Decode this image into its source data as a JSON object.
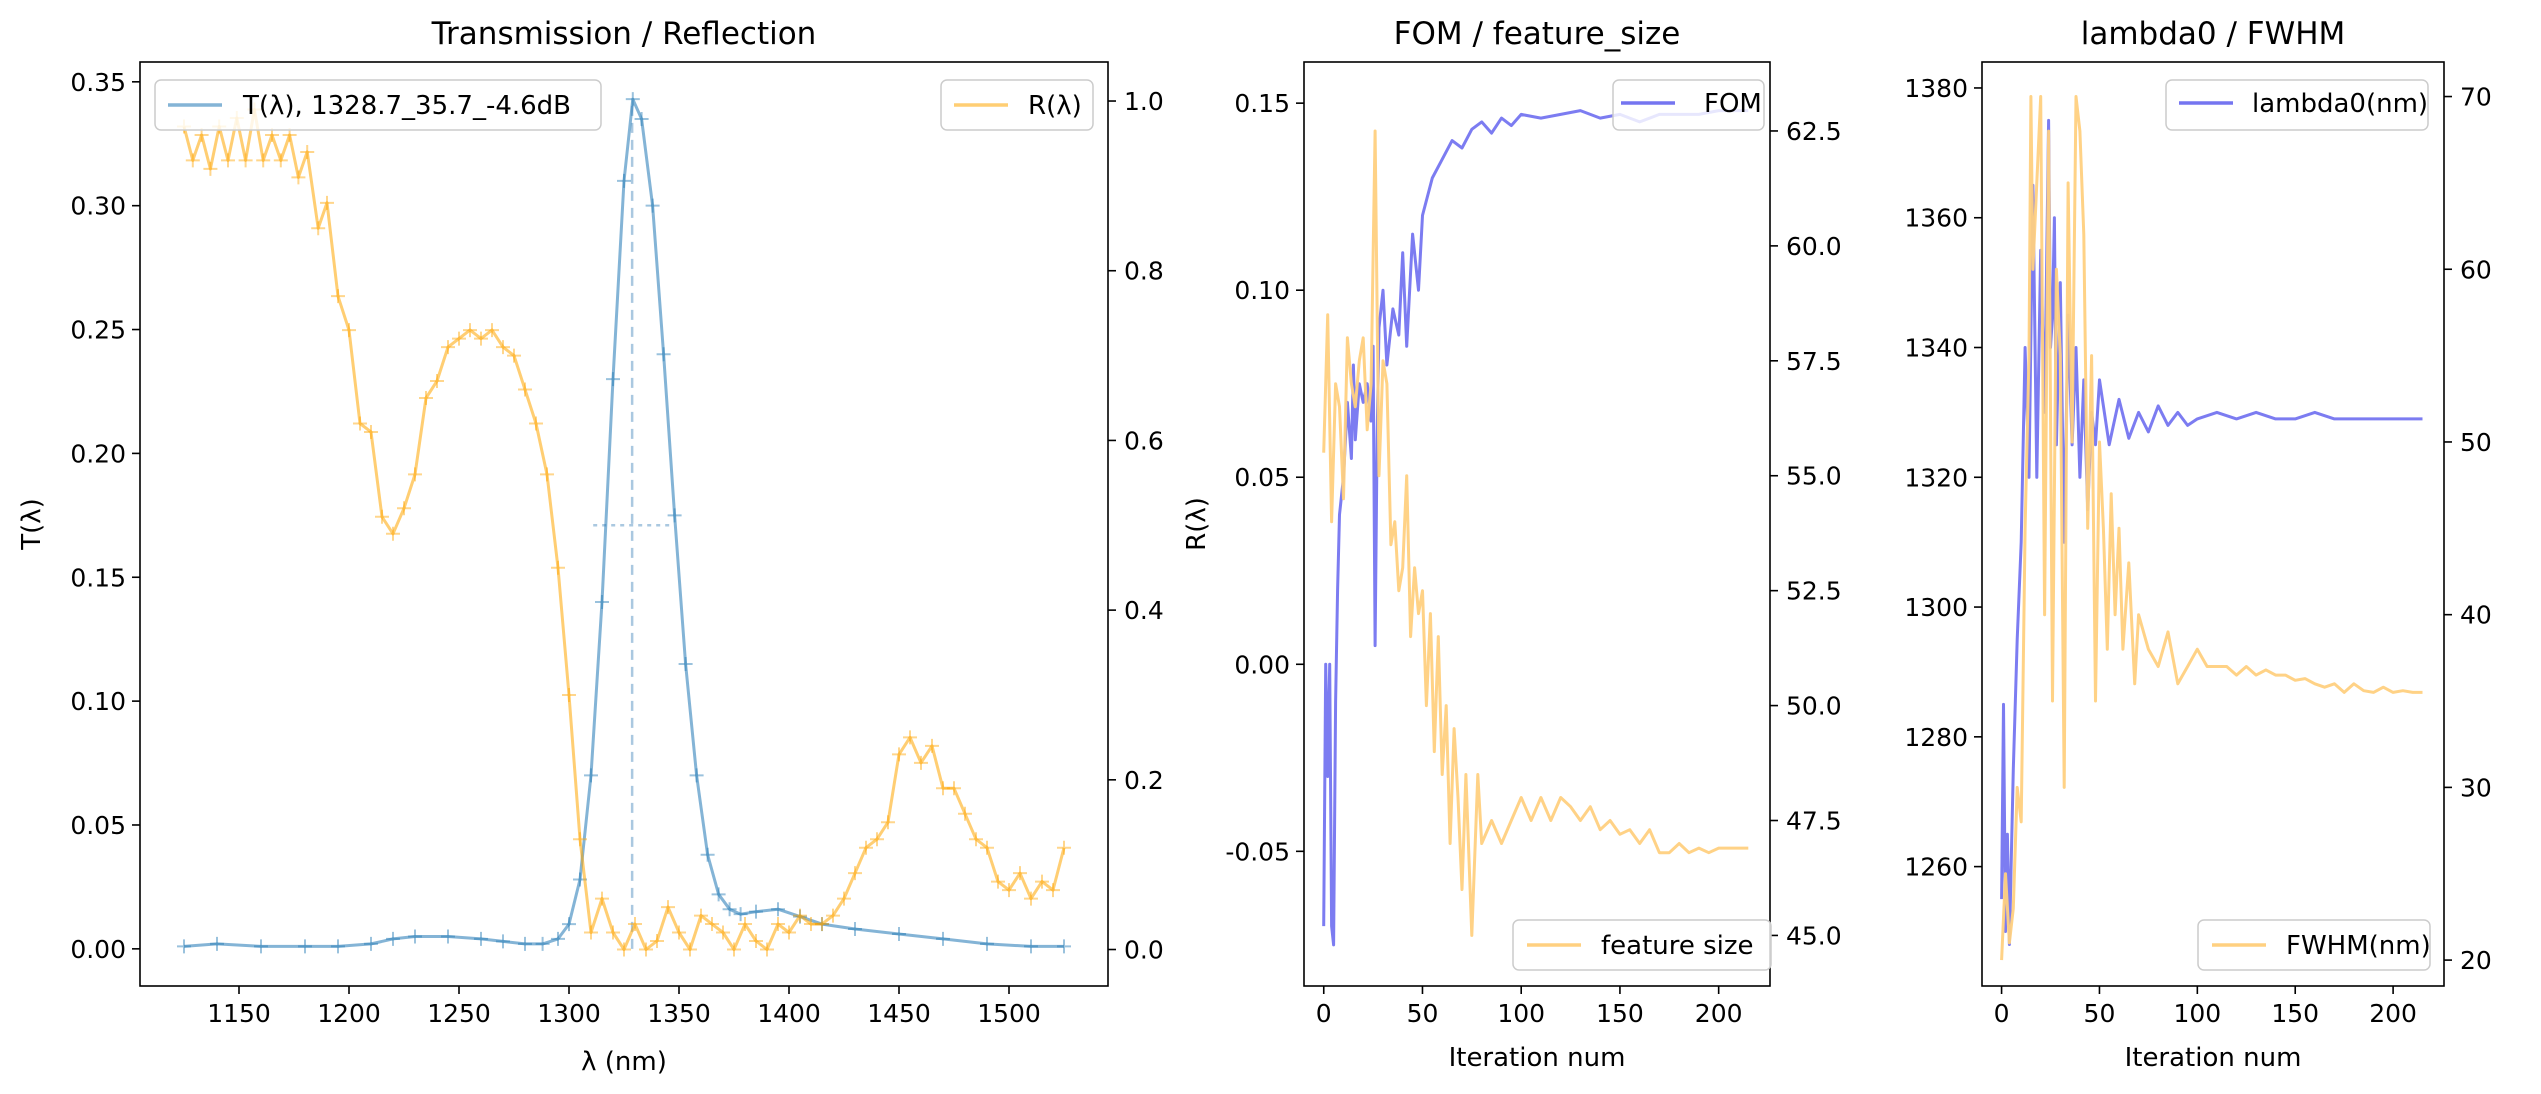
{
  "chart_data": [
    {
      "type": "line",
      "title": "Transmission / Reflection",
      "xlabel": "λ (nm)",
      "ylabel_left": "T(λ)",
      "ylabel_right": "",
      "xlim": [
        1105,
        1545
      ],
      "ylim_left": [
        -0.015,
        0.358
      ],
      "ylim_right": [
        -0.043,
        1.046
      ],
      "xticks": [
        1150,
        1200,
        1250,
        1300,
        1350,
        1400,
        1450,
        1500
      ],
      "yticks_left": [
        0.0,
        0.05,
        0.1,
        0.15,
        0.2,
        0.25,
        0.3,
        0.35
      ],
      "yticks_right": [
        0.0,
        0.2,
        0.4,
        0.6,
        0.8,
        1.0
      ],
      "legend_left": "T(λ), 1328.7_35.7_-4.6dB",
      "legend_right": "R(λ)",
      "legend_left_loc": "upper left",
      "legend_right_loc": "upper right",
      "colors": {
        "T": "#1f77b4",
        "R": "#ffa500"
      },
      "annotations": {
        "peak_wavelength": 1328.7,
        "fwhm_nm": 35.7,
        "half_max": 0.171,
        "fwhm_span": [
          1311,
          1347
        ]
      },
      "series": [
        {
          "name": "T(λ), 1328.7_35.7_-4.6dB",
          "axis": "left",
          "x": [
            1125,
            1140,
            1160,
            1180,
            1195,
            1210,
            1220,
            1230,
            1245,
            1260,
            1270,
            1280,
            1288,
            1295,
            1300,
            1305,
            1310,
            1315,
            1320,
            1325,
            1329,
            1333,
            1338,
            1343,
            1348,
            1353,
            1358,
            1363,
            1368,
            1373,
            1378,
            1385,
            1395,
            1405,
            1415,
            1430,
            1450,
            1470,
            1490,
            1510,
            1525
          ],
          "y": [
            0.001,
            0.002,
            0.001,
            0.001,
            0.001,
            0.002,
            0.004,
            0.005,
            0.005,
            0.004,
            0.003,
            0.002,
            0.002,
            0.004,
            0.01,
            0.028,
            0.07,
            0.14,
            0.23,
            0.31,
            0.343,
            0.335,
            0.3,
            0.24,
            0.175,
            0.115,
            0.07,
            0.038,
            0.022,
            0.016,
            0.014,
            0.015,
            0.016,
            0.013,
            0.01,
            0.008,
            0.006,
            0.004,
            0.002,
            0.001,
            0.001
          ]
        },
        {
          "name": "R(λ)",
          "axis": "right",
          "x": [
            1125,
            1129,
            1133,
            1137,
            1141,
            1145,
            1149,
            1153,
            1157,
            1161,
            1165,
            1169,
            1173,
            1177,
            1181,
            1186,
            1190,
            1195,
            1200,
            1205,
            1210,
            1215,
            1220,
            1225,
            1230,
            1235,
            1240,
            1245,
            1250,
            1255,
            1260,
            1265,
            1270,
            1275,
            1280,
            1285,
            1290,
            1295,
            1300,
            1305,
            1310,
            1315,
            1320,
            1325,
            1330,
            1335,
            1340,
            1345,
            1350,
            1355,
            1360,
            1365,
            1370,
            1375,
            1380,
            1385,
            1390,
            1395,
            1400,
            1405,
            1410,
            1415,
            1420,
            1425,
            1430,
            1435,
            1440,
            1445,
            1450,
            1455,
            1460,
            1465,
            1470,
            1475,
            1480,
            1485,
            1490,
            1495,
            1500,
            1505,
            1510,
            1515,
            1520,
            1525
          ],
          "y": [
            0.97,
            0.93,
            0.96,
            0.92,
            0.97,
            0.93,
            0.98,
            0.93,
            0.99,
            0.93,
            0.96,
            0.93,
            0.96,
            0.91,
            0.94,
            0.85,
            0.88,
            0.77,
            0.73,
            0.62,
            0.61,
            0.51,
            0.49,
            0.52,
            0.56,
            0.65,
            0.67,
            0.71,
            0.72,
            0.73,
            0.72,
            0.73,
            0.71,
            0.7,
            0.66,
            0.62,
            0.56,
            0.45,
            0.3,
            0.13,
            0.02,
            0.06,
            0.02,
            0.0,
            0.03,
            0.0,
            0.01,
            0.05,
            0.02,
            0.0,
            0.04,
            0.03,
            0.02,
            0.0,
            0.03,
            0.01,
            0.0,
            0.03,
            0.02,
            0.04,
            0.03,
            0.03,
            0.04,
            0.06,
            0.09,
            0.12,
            0.13,
            0.15,
            0.23,
            0.25,
            0.22,
            0.24,
            0.19,
            0.19,
            0.16,
            0.13,
            0.12,
            0.08,
            0.07,
            0.09,
            0.06,
            0.08,
            0.07,
            0.12
          ]
        }
      ]
    },
    {
      "type": "line",
      "title": "FOM / feature_size",
      "xlabel": "Iteration num",
      "ylabel_left": "R(λ)",
      "xlim": [
        -10,
        226
      ],
      "ylim_left": [
        -0.086,
        0.161
      ],
      "ylim_right": [
        43.9,
        64.0
      ],
      "xticks": [
        0,
        50,
        100,
        150,
        200
      ],
      "yticks_left": [
        -0.05,
        0.0,
        0.05,
        0.1,
        0.15
      ],
      "yticks_right": [
        45.0,
        47.5,
        50.0,
        52.5,
        55.0,
        57.5,
        60.0,
        62.5
      ],
      "legend_left": "FOM",
      "legend_right": "feature size",
      "legend_left_loc": "upper right",
      "legend_right_loc": "lower right",
      "colors": {
        "left": "#7575f0",
        "right": "#ffd080"
      },
      "series": [
        {
          "name": "FOM",
          "axis": "left",
          "x": [
            0,
            1,
            2,
            3,
            4,
            5,
            6,
            7,
            8,
            10,
            12,
            14,
            15,
            16,
            18,
            20,
            22,
            24,
            25,
            26,
            27,
            28,
            30,
            32,
            35,
            38,
            40,
            42,
            45,
            48,
            50,
            55,
            60,
            65,
            70,
            75,
            80,
            85,
            90,
            95,
            100,
            110,
            120,
            130,
            140,
            150,
            160,
            170,
            180,
            190,
            200,
            210,
            215
          ],
          "y": [
            -0.07,
            0.0,
            -0.03,
            0.0,
            -0.07,
            -0.075,
            -0.01,
            0.02,
            0.04,
            0.05,
            0.07,
            0.055,
            0.08,
            0.06,
            0.075,
            0.07,
            0.075,
            0.065,
            0.085,
            0.005,
            0.06,
            0.09,
            0.1,
            0.08,
            0.095,
            0.088,
            0.11,
            0.085,
            0.115,
            0.1,
            0.12,
            0.13,
            0.135,
            0.14,
            0.138,
            0.143,
            0.145,
            0.142,
            0.146,
            0.144,
            0.147,
            0.146,
            0.147,
            0.148,
            0.146,
            0.147,
            0.145,
            0.147,
            0.147,
            0.147,
            0.148,
            0.148,
            0.148
          ]
        },
        {
          "name": "feature size",
          "axis": "right",
          "x": [
            0,
            2,
            4,
            6,
            8,
            10,
            12,
            14,
            16,
            18,
            20,
            22,
            24,
            26,
            28,
            30,
            32,
            34,
            36,
            38,
            40,
            42,
            44,
            46,
            48,
            50,
            52,
            54,
            56,
            58,
            60,
            62,
            64,
            66,
            68,
            70,
            72,
            75,
            78,
            80,
            85,
            90,
            95,
            100,
            105,
            110,
            115,
            120,
            125,
            130,
            135,
            140,
            145,
            150,
            155,
            160,
            165,
            170,
            175,
            180,
            185,
            190,
            195,
            200,
            205,
            210,
            215
          ],
          "y": [
            55.5,
            58.5,
            54.0,
            57.0,
            56.5,
            54.5,
            58.0,
            57.0,
            56.5,
            57.5,
            58.0,
            56.0,
            57.0,
            62.5,
            55.0,
            57.5,
            57.0,
            53.5,
            54.0,
            52.5,
            53.0,
            55.0,
            51.5,
            53.0,
            52.0,
            52.5,
            50.0,
            52.0,
            49.0,
            51.5,
            48.5,
            50.0,
            47.0,
            49.5,
            48.0,
            46.0,
            48.5,
            45.0,
            48.5,
            47.0,
            47.5,
            47.0,
            47.5,
            48.0,
            47.5,
            48.0,
            47.5,
            48.0,
            47.8,
            47.5,
            47.8,
            47.3,
            47.5,
            47.2,
            47.3,
            47.0,
            47.3,
            46.8,
            46.8,
            47.0,
            46.8,
            46.9,
            46.8,
            46.9,
            46.9,
            46.9,
            46.9
          ]
        }
      ]
    },
    {
      "type": "line",
      "title": "lambda0 / FWHM",
      "xlabel": "Iteration num",
      "ylabel_left": "",
      "xlim": [
        -10,
        226
      ],
      "ylim_left": [
        1241.6,
        1384.0
      ],
      "ylim_right": [
        18.5,
        72.0
      ],
      "xticks": [
        0,
        50,
        100,
        150,
        200
      ],
      "yticks_left": [
        1260,
        1280,
        1300,
        1320,
        1340,
        1360,
        1380
      ],
      "yticks_right": [
        20,
        30,
        40,
        50,
        60,
        70
      ],
      "legend_left": "lambda0(nm)",
      "legend_right": "FWHM(nm)",
      "legend_left_loc": "upper right",
      "legend_right_loc": "lower right",
      "colors": {
        "left": "#7575f0",
        "right": "#ffd080"
      },
      "series": [
        {
          "name": "lambda0(nm)",
          "axis": "left",
          "x": [
            0,
            1,
            2,
            3,
            4,
            5,
            6,
            8,
            10,
            12,
            14,
            16,
            18,
            20,
            22,
            24,
            25,
            26,
            27,
            28,
            30,
            32,
            34,
            36,
            38,
            40,
            42,
            44,
            46,
            48,
            50,
            55,
            60,
            65,
            70,
            75,
            80,
            85,
            90,
            95,
            100,
            110,
            120,
            130,
            140,
            150,
            160,
            170,
            180,
            190,
            200,
            210,
            215
          ],
          "y": [
            1255,
            1285,
            1250,
            1265,
            1248,
            1262,
            1275,
            1295,
            1310,
            1340,
            1320,
            1365,
            1320,
            1355,
            1330,
            1375,
            1340,
            1345,
            1360,
            1325,
            1350,
            1310,
            1345,
            1325,
            1340,
            1320,
            1335,
            1315,
            1330,
            1325,
            1335,
            1325,
            1332,
            1326,
            1330,
            1327,
            1331,
            1328,
            1330,
            1328,
            1329,
            1330,
            1329,
            1330,
            1329,
            1329,
            1330,
            1329,
            1329,
            1329,
            1329,
            1329,
            1329
          ]
        },
        {
          "name": "FWHM(nm)",
          "axis": "right",
          "x": [
            0,
            2,
            4,
            6,
            8,
            10,
            12,
            14,
            15,
            16,
            18,
            20,
            22,
            24,
            26,
            28,
            30,
            32,
            34,
            36,
            38,
            40,
            42,
            44,
            46,
            48,
            50,
            52,
            54,
            56,
            58,
            60,
            62,
            65,
            68,
            70,
            75,
            80,
            85,
            90,
            95,
            100,
            105,
            110,
            115,
            120,
            125,
            130,
            135,
            140,
            145,
            150,
            155,
            160,
            165,
            170,
            175,
            180,
            185,
            190,
            195,
            200,
            205,
            210,
            215
          ],
          "y": [
            20,
            25,
            21,
            23,
            30,
            28,
            45,
            55,
            70,
            60,
            65,
            70,
            40,
            68,
            35,
            60,
            55,
            30,
            65,
            50,
            70,
            68,
            62,
            45,
            55,
            35,
            50,
            45,
            38,
            47,
            40,
            45,
            38,
            43,
            36,
            40,
            38,
            37,
            39,
            36,
            37,
            38,
            37,
            37,
            37,
            36.5,
            37,
            36.5,
            36.8,
            36.5,
            36.5,
            36.2,
            36.3,
            36,
            35.8,
            36,
            35.5,
            36,
            35.6,
            35.5,
            35.8,
            35.5,
            35.6,
            35.5,
            35.5
          ]
        }
      ]
    }
  ]
}
